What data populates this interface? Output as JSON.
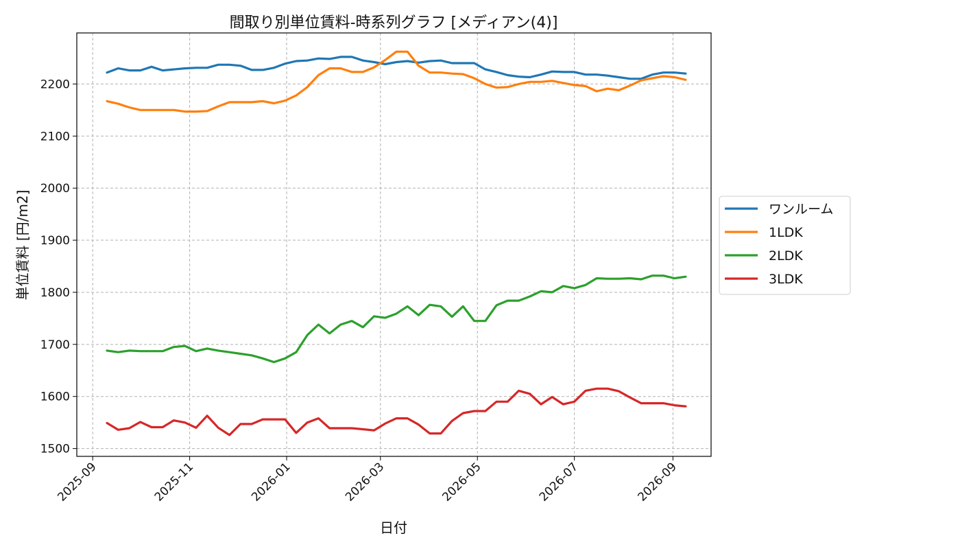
{
  "chart_data": {
    "type": "line",
    "title": "間取り別単位賃料-時系列グラフ [メディアン(4)]",
    "xlabel": "日付",
    "ylabel": "単位賃料 [円/m2]",
    "xlim": [
      "2025-08-22",
      "2026-09-25"
    ],
    "ylim": [
      1485,
      2298
    ],
    "x_ticks": [
      "2025-09-01",
      "2025-11-01",
      "2026-01-01",
      "2026-03-01",
      "2026-05-01",
      "2026-07-01",
      "2026-09-01"
    ],
    "x_tick_labels": [
      "2025-09",
      "2025-11",
      "2026-01",
      "2026-03",
      "2026-05",
      "2026-07",
      "2026-09"
    ],
    "y_ticks": [
      1500,
      1600,
      1700,
      1800,
      1900,
      2000,
      2100,
      2200
    ],
    "grid": true,
    "legend_position": "right",
    "x": [
      "2025-09-10",
      "2025-09-17",
      "2025-09-24",
      "2025-10-01",
      "2025-10-08",
      "2025-10-15",
      "2025-10-22",
      "2025-10-29",
      "2025-11-05",
      "2025-11-12",
      "2025-11-19",
      "2025-11-26",
      "2025-12-03",
      "2025-12-10",
      "2025-12-17",
      "2025-12-24",
      "2025-12-31",
      "2026-01-07",
      "2026-01-14",
      "2026-01-21",
      "2026-01-28",
      "2026-02-04",
      "2026-02-11",
      "2026-02-18",
      "2026-02-25",
      "2026-03-04",
      "2026-03-11",
      "2026-03-18",
      "2026-03-25",
      "2026-04-01",
      "2026-04-08",
      "2026-04-15",
      "2026-04-22",
      "2026-04-29",
      "2026-05-06",
      "2026-05-13",
      "2026-05-20",
      "2026-05-27",
      "2026-06-03",
      "2026-06-10",
      "2026-06-17",
      "2026-06-24",
      "2026-07-01",
      "2026-07-08",
      "2026-07-15",
      "2026-07-22",
      "2026-07-29",
      "2026-08-05",
      "2026-08-12",
      "2026-08-19",
      "2026-08-26",
      "2026-09-02",
      "2026-09-09"
    ],
    "series": [
      {
        "name": "ワンルーム",
        "color": "#1f77b4",
        "values": [
          2222,
          2230,
          2226,
          2226,
          2233,
          2226,
          2228,
          2230,
          2231,
          2231,
          2237,
          2237,
          2235,
          2227,
          2227,
          2231,
          2239,
          2244,
          2245,
          2249,
          2248,
          2252,
          2252,
          2245,
          2242,
          2238,
          2242,
          2244,
          2241,
          2244,
          2245,
          2240,
          2240,
          2240,
          2228,
          2223,
          2217,
          2214,
          2213,
          2218,
          2224,
          2223,
          2223,
          2218,
          2218,
          2216,
          2213,
          2210,
          2210,
          2218,
          2222,
          2222,
          2220
        ]
      },
      {
        "name": "1LDK",
        "color": "#ff7f0e",
        "values": [
          2167,
          2162,
          2155,
          2150,
          2150,
          2150,
          2150,
          2147,
          2147,
          2148,
          2157,
          2165,
          2165,
          2165,
          2167,
          2163,
          2168,
          2178,
          2194,
          2217,
          2230,
          2230,
          2223,
          2223,
          2232,
          2246,
          2262,
          2262,
          2235,
          2222,
          2222,
          2220,
          2219,
          2211,
          2200,
          2193,
          2194,
          2200,
          2204,
          2204,
          2206,
          2202,
          2198,
          2196,
          2186,
          2191,
          2188,
          2197,
          2207,
          2211,
          2215,
          2213,
          2208
        ]
      },
      {
        "name": "2LDK",
        "color": "#2ca02c",
        "values": [
          1688,
          1685,
          1688,
          1687,
          1687,
          1687,
          1695,
          1697,
          1687,
          1692,
          1688,
          1685,
          1682,
          1679,
          1673,
          1666,
          1673,
          1685,
          1718,
          1738,
          1721,
          1738,
          1745,
          1733,
          1754,
          1751,
          1759,
          1773,
          1756,
          1776,
          1773,
          1753,
          1773,
          1745,
          1745,
          1775,
          1784,
          1784,
          1792,
          1802,
          1800,
          1812,
          1808,
          1814,
          1827,
          1826,
          1826,
          1827,
          1825,
          1832,
          1832,
          1827,
          1830
        ]
      },
      {
        "name": "3LDK",
        "color": "#d62728",
        "values": [
          1549,
          1536,
          1539,
          1551,
          1541,
          1541,
          1554,
          1550,
          1540,
          1563,
          1540,
          1526,
          1547,
          1547,
          1556,
          1556,
          1556,
          1530,
          1550,
          1558,
          1539,
          1539,
          1539,
          1537,
          1535,
          1548,
          1558,
          1558,
          1546,
          1529,
          1529,
          1553,
          1568,
          1572,
          1572,
          1590,
          1590,
          1611,
          1605,
          1585,
          1599,
          1585,
          1590,
          1611,
          1615,
          1615,
          1610,
          1598,
          1587,
          1587,
          1587,
          1583,
          1581
        ]
      }
    ]
  }
}
